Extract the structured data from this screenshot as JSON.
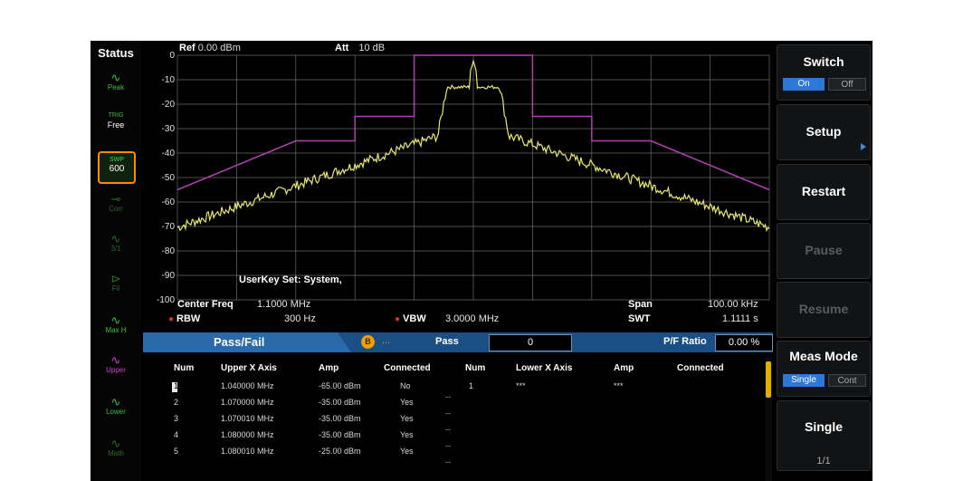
{
  "status": {
    "title": "Status",
    "items": [
      {
        "top": "Peak",
        "bottom": ""
      },
      {
        "top": "TRIG",
        "bottom": "Free"
      },
      {
        "top": "SWP",
        "bottom": "600"
      },
      {
        "top": "Corr",
        "bottom": ""
      },
      {
        "top": "Trace",
        "bottom": "3/1"
      },
      {
        "top": "Fil",
        "bottom": ""
      },
      {
        "top": "Max H",
        "bottom": ""
      },
      {
        "top": "Upper",
        "bottom": ""
      },
      {
        "top": "Lower",
        "bottom": ""
      },
      {
        "top": "Math",
        "bottom": ""
      }
    ]
  },
  "header": {
    "ref_label": "Ref",
    "ref_value": "0.00 dBm",
    "att_label": "Att",
    "att_value": "10 dB"
  },
  "y_axis": {
    "ticks": [
      "0",
      "-10",
      "-20",
      "-30",
      "-40",
      "-50",
      "-60",
      "-70",
      "-80",
      "-90",
      "-100"
    ]
  },
  "overlay_text": "UserKey Set:   System,",
  "footer": {
    "center_freq_label": "Center Freq",
    "center_freq_value": "1.1000 MHz",
    "span_label": "Span",
    "span_value": "100.00 kHz",
    "rbw_label": "RBW",
    "rbw_value": "300 Hz",
    "vbw_label": "VBW",
    "vbw_value": "3.0000 MHz",
    "swt_label": "SWT",
    "swt_value": "1.1111 s"
  },
  "passfail": {
    "title": "Pass/Fail",
    "badge": "B",
    "dash": "...",
    "pass_label": "Pass",
    "pass_value": "0",
    "ratio_label": "P/F Ratio",
    "ratio_value": "0.00 %"
  },
  "table": {
    "upper_headers": [
      "Num",
      "Upper X Axis",
      "Amp",
      "Connected"
    ],
    "lower_headers": [
      "Num",
      "Lower X Axis",
      "Amp",
      "Connected"
    ],
    "upper_rows": [
      {
        "num": "1",
        "x": "1.040000 MHz",
        "amp": "-65.00 dBm",
        "conn": "No"
      },
      {
        "num": "2",
        "x": "1.070000 MHz",
        "amp": "-35.00 dBm",
        "conn": "Yes"
      },
      {
        "num": "3",
        "x": "1.070010 MHz",
        "amp": "-35.00 dBm",
        "conn": "Yes"
      },
      {
        "num": "4",
        "x": "1.080000 MHz",
        "amp": "-35.00 dBm",
        "conn": "Yes"
      },
      {
        "num": "5",
        "x": "1.080010 MHz",
        "amp": "-25.00 dBm",
        "conn": "Yes"
      }
    ],
    "lower_rows": [
      {
        "num": "1",
        "x": "***",
        "amp": "***",
        "conn": ""
      }
    ]
  },
  "menu": {
    "switch": {
      "label": "Switch",
      "on": "On",
      "off": "Off"
    },
    "setup": "Setup",
    "restart": "Restart",
    "pause": "Pause",
    "resume": "Resume",
    "meas_mode": {
      "label": "Meas Mode",
      "single": "Single",
      "cont": "Cont"
    },
    "single": "Single",
    "page": "1/1"
  },
  "colors": {
    "trace": "#e8e870",
    "limit": "#b040b0",
    "grid": "#6a6a6a",
    "highlight": "#ff8a00",
    "accent": "#2a78d8"
  }
}
